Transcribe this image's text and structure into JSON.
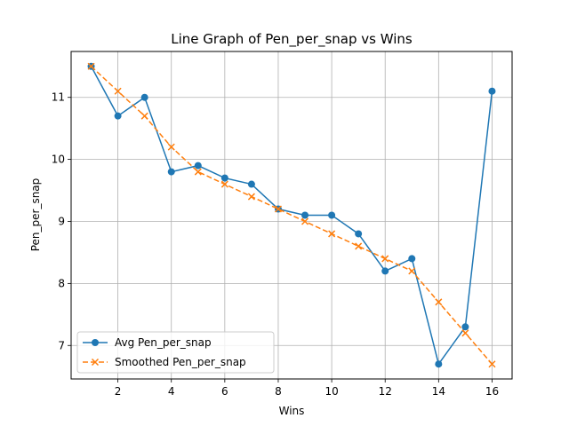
{
  "chart_data": {
    "type": "line",
    "title": "Line Graph of Pen_per_snap vs Wins",
    "xlabel": "Wins",
    "ylabel": "Pen_per_snap",
    "xlim": [
      0.25,
      16.75
    ],
    "ylim": [
      6.46,
      11.74
    ],
    "xticks": [
      2,
      4,
      6,
      8,
      10,
      12,
      14,
      16
    ],
    "yticks": [
      7,
      8,
      9,
      10,
      11
    ],
    "grid": true,
    "legend_position": "lower-left",
    "x": [
      1,
      2,
      3,
      4,
      5,
      6,
      7,
      8,
      9,
      10,
      11,
      12,
      13,
      14,
      15,
      16
    ],
    "series": [
      {
        "name": "Avg Pen_per_snap",
        "color": "#1f77b4",
        "line_style": "solid",
        "marker": "circle",
        "values": [
          11.5,
          10.7,
          11.0,
          9.8,
          9.9,
          9.7,
          9.6,
          9.2,
          9.1,
          9.1,
          8.8,
          8.2,
          8.4,
          6.7,
          7.3,
          11.1
        ]
      },
      {
        "name": "Smoothed Pen_per_snap",
        "color": "#ff7f0e",
        "line_style": "dashed",
        "marker": "x",
        "values": [
          11.5,
          11.1,
          10.7,
          10.2,
          9.8,
          9.6,
          9.4,
          9.2,
          9.0,
          8.8,
          8.6,
          8.4,
          8.2,
          7.7,
          7.2,
          6.7
        ]
      }
    ]
  }
}
